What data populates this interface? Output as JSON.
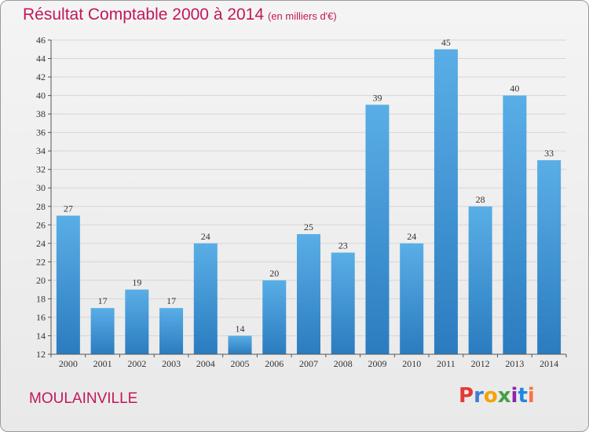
{
  "header": {
    "title": "Résultat Comptable 2000 à 2014",
    "subtitle": "(en milliers d'€)"
  },
  "footer": {
    "location": "MOULAINVILLE",
    "brand": "Proxiti",
    "brand_colors": [
      "#e53935",
      "#3b7dd8",
      "#f5a300",
      "#43a047",
      "#8e24aa",
      "#1e88e5",
      "#ff7043"
    ]
  },
  "colors": {
    "accent": "#c2185b",
    "bar_top": "#5aaee6",
    "bar_bottom": "#2a7cbf",
    "grid": "#d6d6d6"
  },
  "chart_data": {
    "type": "bar",
    "title": "Résultat Comptable 2000 à 2014",
    "subtitle": "(en milliers d'€)",
    "categories": [
      "2000",
      "2001",
      "2002",
      "2003",
      "2004",
      "2005",
      "2006",
      "2007",
      "2008",
      "2009",
      "2010",
      "2011",
      "2012",
      "2013",
      "2014"
    ],
    "values": [
      27,
      17,
      19,
      17,
      24,
      14,
      20,
      25,
      23,
      39,
      24,
      45,
      28,
      40,
      33
    ],
    "ylim": [
      12,
      46
    ],
    "yticks": [
      12,
      14,
      16,
      18,
      20,
      22,
      24,
      26,
      28,
      30,
      32,
      34,
      36,
      38,
      40,
      42,
      44,
      46
    ],
    "grid": true,
    "data_labels": true
  }
}
